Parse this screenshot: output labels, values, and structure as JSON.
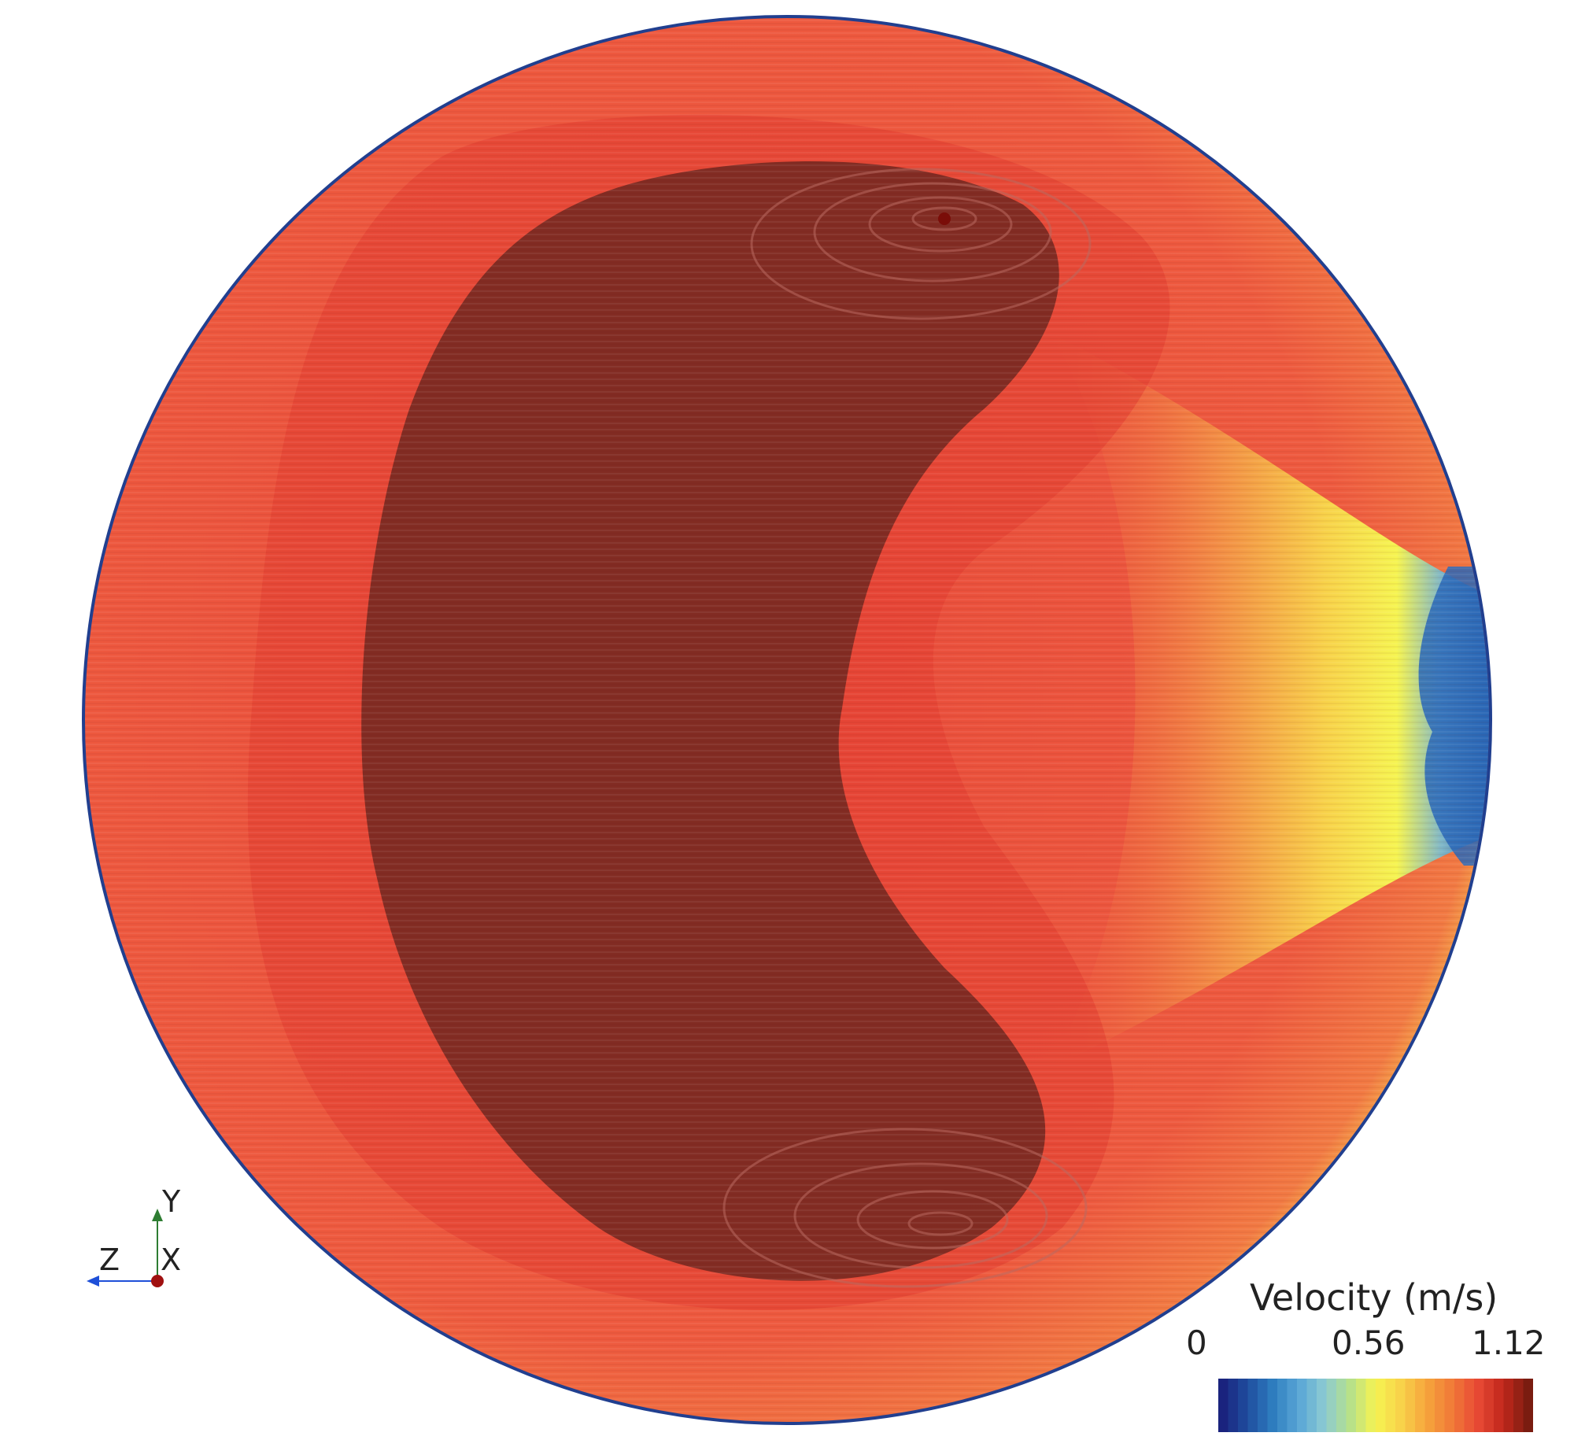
{
  "scene": {
    "field": "Velocity",
    "unit": "m/s"
  },
  "legend": {
    "title": "Velocity (m/s)",
    "ticks": [
      "0",
      "0.56",
      "1.12"
    ],
    "min": 0,
    "max": 1.12,
    "colormap": [
      "#1a237e",
      "#1f4fa0",
      "#2f7fc0",
      "#5aa7d6",
      "#8ccbd2",
      "#b6e08a",
      "#f6f451",
      "#f8d24a",
      "#f6a43c",
      "#f07a38",
      "#e84a35",
      "#c2281c",
      "#7a1c10"
    ]
  },
  "orientation_axes": {
    "y_label": "Y",
    "z_label": "Z",
    "x_label": "X",
    "y_color": "#2e7d32",
    "z_color": "#1e4fd8",
    "x_color": "#a01010"
  },
  "colors": {
    "background": "#ffffff",
    "outer_band": "#ee4b3a",
    "core_region": "#7a2a22",
    "boundary_blue": "#213f8f",
    "low_velocity_blue": "#2a68b8",
    "mid_yellow": "#f5e84a",
    "mid_orange": "#f39b45"
  }
}
